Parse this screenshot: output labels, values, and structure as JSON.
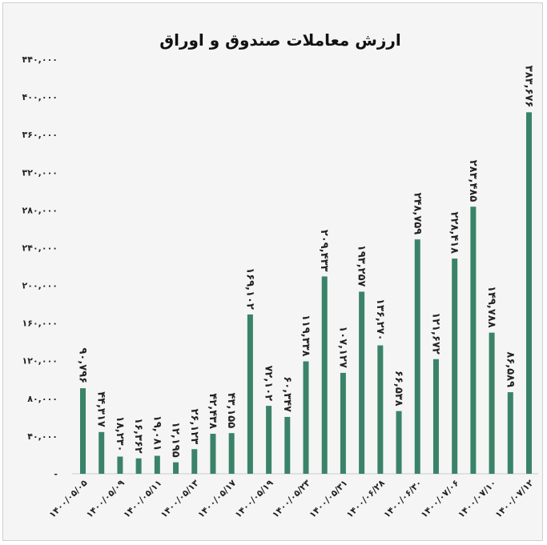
{
  "chart_data": {
    "type": "bar",
    "title": "ارزش معاملات صندوق و اوراق",
    "xlabel": "",
    "ylabel": "",
    "ylim": [
      0,
      440000
    ],
    "y_ticks": [
      0,
      40000,
      80000,
      120000,
      160000,
      200000,
      240000,
      280000,
      320000,
      360000,
      400000,
      440000
    ],
    "y_tick_labels": [
      "-",
      "۴۰,۰۰۰",
      "۸۰,۰۰۰",
      "۱۲۰,۰۰۰",
      "۱۶۰,۰۰۰",
      "۲۰۰,۰۰۰",
      "۲۴۰,۰۰۰",
      "۲۸۰,۰۰۰",
      "۳۲۰,۰۰۰",
      "۳۶۰,۰۰۰",
      "۴۰۰,۰۰۰",
      "۴۴۰,۰۰۰"
    ],
    "values": [
      90796,
      44317,
      18230,
      16362,
      19081,
      12195,
      26123,
      42438,
      43155,
      169102,
      72102,
      60347,
      119338,
      209433,
      107127,
      193257,
      136270,
      66538,
      248759,
      121672,
      228418,
      283485,
      149788,
      86589,
      383676
    ],
    "data_labels": [
      "۹۰,۷۹۶",
      "۴۴,۳۱۷",
      "۱۸,۲۳۰",
      "۱۶,۳۶۲",
      "۱۹,۰۸۱",
      "۱۲,۱۹۵",
      "۲۶,۱۲۳",
      "۴۲,۴۳۸",
      "۴۳,۱۵۵",
      "۱۶۹,۱۰۲",
      "۷۲,۱۰۲",
      "۶۰,۳۴۷",
      "۱۱۹,۳۳۸",
      "۲۰۹,۴۳۳",
      "۱۰۷,۱۲۷",
      "۱۹۳,۲۵۷",
      "۱۳۶,۲۷۰",
      "۶۶,۵۳۸",
      "۲۴۸,۷۵۹",
      "۱۲۱,۶۷۲",
      "۲۲۸,۴۱۸",
      "۲۸۳,۴۸۵",
      "۱۴۹,۷۸۸",
      "۸۶,۵۸۹",
      "۳۸۳,۶۷۶"
    ],
    "x_tick_labels": [
      "۱۴۰۰/۰۵/۰۵",
      "۱۴۰۰/۰۵/۰۹",
      "۱۴۰۰/۰۵/۱۱",
      "۱۴۰۰/۰۵/۱۳",
      "۱۴۰۰/۰۵/۱۷",
      "۱۴۰۰/۰۵/۱۹",
      "۱۴۰۰/۰۵/۲۳",
      "۱۴۰۰/۰۵/۳۱",
      "۱۴۰۰/۰۶/۲۸",
      "۱۴۰۰/۰۶/۳۰",
      "۱۴۰۰/۰۷/۰۶",
      "۱۴۰۰/۰۷/۱۰",
      "۱۴۰۰/۰۷/۱۲"
    ],
    "x_tick_bar_index": [
      0,
      2,
      4,
      6,
      8,
      10,
      12,
      14,
      16,
      18,
      20,
      22,
      24
    ],
    "grid": false,
    "legend": "none",
    "bar_color": "#3a8368"
  }
}
